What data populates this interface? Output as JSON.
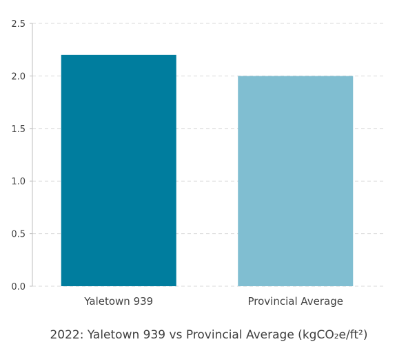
{
  "chart_data": {
    "type": "bar",
    "categories": [
      "Yaletown 939",
      "Provincial Average"
    ],
    "values": [
      2.2,
      2.0
    ],
    "colors": [
      "#007d9e",
      "#80bed1"
    ],
    "ylim": [
      0,
      2.5
    ],
    "yticks": [
      "0.0",
      "0.5",
      "1.0",
      "1.5",
      "2.0",
      "2.5"
    ],
    "grid": true,
    "legend": "none",
    "xlabel": "2022: Yaletown 939 vs Provincial Average (kgCO₂e/ft²)",
    "ylabel": "",
    "title": ""
  },
  "style": {
    "grid_color": "#d9d9d9",
    "axis_color": "#bdbdbd",
    "text_color": "#3f3f3f"
  }
}
